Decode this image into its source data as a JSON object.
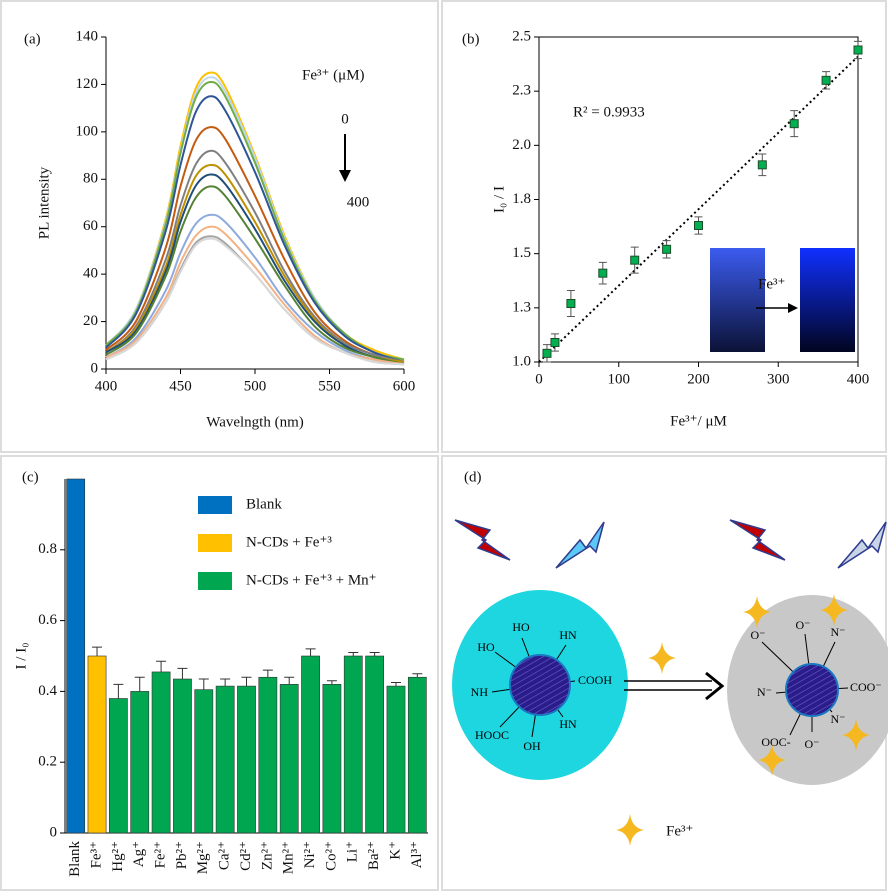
{
  "chart_data": [
    {
      "type": "line",
      "panel_label": "(a)",
      "x_label": "Wavelngth (nm)",
      "y_label": "PL intensity",
      "x": [
        400,
        420,
        440,
        450,
        460,
        470,
        480,
        500,
        520,
        540,
        560,
        580,
        600
      ],
      "series": [
        {
          "color": "#ffc000",
          "values": [
            10,
            25,
            63,
            94,
            118,
            125,
            119,
            90,
            56,
            30,
            15,
            8,
            4
          ]
        },
        {
          "color": "#bdd7ee",
          "values": [
            10,
            25,
            62,
            92,
            116,
            123,
            117,
            89,
            55,
            30,
            15,
            7,
            4
          ]
        },
        {
          "color": "#70ad47",
          "values": [
            10,
            24,
            61,
            91,
            114,
            121,
            115,
            87,
            54,
            29,
            15,
            7,
            4
          ]
        },
        {
          "color": "#2f5597",
          "values": [
            9,
            23,
            58,
            86,
            108,
            115,
            109,
            83,
            52,
            28,
            14,
            7,
            3
          ]
        },
        {
          "color": "#c55a11",
          "values": [
            8,
            20,
            51,
            77,
            96,
            102,
            97,
            73,
            46,
            24,
            12,
            6,
            3
          ]
        },
        {
          "color": "#7f7f7f",
          "values": [
            7,
            18,
            46,
            69,
            86,
            92,
            87,
            66,
            41,
            22,
            11,
            6,
            3
          ]
        },
        {
          "color": "#bf9000",
          "values": [
            7,
            17,
            43,
            65,
            81,
            86,
            82,
            62,
            39,
            21,
            10,
            5,
            3
          ]
        },
        {
          "color": "#1f4e79",
          "values": [
            7,
            16,
            41,
            62,
            77,
            82,
            78,
            59,
            37,
            20,
            10,
            5,
            2
          ]
        },
        {
          "color": "#548235",
          "values": [
            6,
            15,
            39,
            58,
            72,
            77,
            73,
            55,
            35,
            18,
            9,
            5,
            2
          ]
        },
        {
          "color": "#8faadc",
          "values": [
            5,
            13,
            33,
            49,
            61,
            65,
            62,
            47,
            29,
            16,
            8,
            4,
            2
          ]
        },
        {
          "color": "#f4b183",
          "values": [
            5,
            12,
            30,
            45,
            56,
            60,
            57,
            43,
            27,
            14,
            7,
            4,
            2
          ]
        },
        {
          "color": "#a5a5a5",
          "values": [
            4,
            11,
            28,
            42,
            53,
            56,
            53,
            40,
            25,
            13,
            7,
            3,
            2
          ]
        },
        {
          "color": "#d9d9d9",
          "values": [
            4,
            11,
            28,
            41,
            52,
            55,
            52,
            40,
            25,
            13,
            7,
            3,
            2
          ]
        }
      ],
      "xlim": [
        400,
        600
      ],
      "ylim": [
        0,
        140
      ],
      "xticks": [
        400,
        450,
        500,
        550,
        600
      ],
      "yticks": [
        0,
        20,
        40,
        60,
        80,
        100,
        120,
        140
      ],
      "annotations": {
        "legend_title": "Fe³⁺ (μM)",
        "start": "0",
        "end": "400"
      }
    },
    {
      "type": "scatter",
      "panel_label": "(b)",
      "x_label": "Fe³⁺/ μM",
      "y_label": "I₀ / I",
      "x": [
        10,
        20,
        40,
        80,
        120,
        160,
        200,
        280,
        320,
        360,
        400
      ],
      "series": [
        {
          "color": "#00b050",
          "values": [
            1.04,
            1.09,
            1.27,
            1.41,
            1.47,
            1.52,
            1.63,
            1.91,
            2.1,
            2.3,
            2.44
          ],
          "errors": [
            0.04,
            0.04,
            0.06,
            0.05,
            0.06,
            0.04,
            0.04,
            0.05,
            0.06,
            0.04,
            0.04
          ]
        }
      ],
      "trendline": {
        "x": [
          0,
          400
        ],
        "y": [
          1.0,
          2.41
        ]
      },
      "annotation": "R² = 0.9933",
      "inset_label": "Fe³⁺",
      "xlim": [
        0,
        400
      ],
      "ylim": [
        1.0,
        2.5
      ],
      "xticks": [
        0,
        100,
        200,
        300,
        400
      ],
      "yticks": [
        {
          "value": 1.0,
          "label": "1.0"
        },
        {
          "value": 1.25,
          "label": "1.3"
        },
        {
          "value": 1.5,
          "label": "1.5"
        },
        {
          "value": 1.75,
          "label": "1.8"
        },
        {
          "value": 2.0,
          "label": "2.0"
        },
        {
          "value": 2.25,
          "label": "2.3"
        },
        {
          "value": 2.5,
          "label": "2.5"
        }
      ]
    },
    {
      "type": "bar",
      "panel_label": "(c)",
      "y_label": "I / I₀",
      "categories": [
        "Blank",
        "Fe³⁺",
        "Hg²⁺",
        "Ag⁺",
        "Fe²⁺",
        "Pb²⁺",
        "Mg²⁺",
        "Ca²⁺",
        "Cd²⁺",
        "Zn²⁺",
        "Mn²⁺",
        "Ni²⁺",
        "Co²⁺",
        "Li⁺",
        "Ba²⁺",
        "K⁺",
        "Al³⁺"
      ],
      "series": [
        {
          "name": "Blank",
          "color": "#0070c0",
          "values": [
            1,
            null,
            null,
            null,
            null,
            null,
            null,
            null,
            null,
            null,
            null,
            null,
            null,
            null,
            null,
            null,
            null
          ],
          "errors": [
            null,
            null,
            null,
            null,
            null,
            null,
            null,
            null,
            null,
            null,
            null,
            null,
            null,
            null,
            null,
            null,
            null
          ]
        },
        {
          "name": "N-CDs + Fe⁺³",
          "color": "#ffc000",
          "values": [
            null,
            0.5,
            null,
            null,
            null,
            null,
            null,
            null,
            null,
            null,
            null,
            null,
            null,
            null,
            null,
            null,
            null
          ],
          "errors": [
            null,
            0.025,
            null,
            null,
            null,
            null,
            null,
            null,
            null,
            null,
            null,
            null,
            null,
            null,
            null,
            null,
            null
          ]
        },
        {
          "name": "N-CDs + Fe⁺³ + Mn⁺",
          "color": "#00a650",
          "values": [
            null,
            null,
            0.38,
            0.4,
            0.455,
            0.435,
            0.405,
            0.415,
            0.415,
            0.44,
            0.42,
            0.5,
            0.42,
            0.5,
            0.5,
            0.415,
            0.44
          ],
          "errors": [
            null,
            null,
            0.04,
            0.04,
            0.03,
            0.03,
            0.03,
            0.02,
            0.025,
            0.02,
            0.02,
            0.02,
            0.01,
            0.01,
            0.01,
            0.01,
            0.01
          ]
        }
      ],
      "ylim": [
        0,
        1
      ],
      "yticks": [
        0,
        0.2,
        0.4,
        0.6,
        0.8
      ],
      "legend": "upper right"
    }
  ],
  "diagram": {
    "panel_label": "(d)",
    "left_groups": [
      "HO",
      "HO",
      "HN",
      "COOH",
      "NH",
      "HOOC",
      "OH",
      "HN"
    ],
    "right_groups": [
      "O⁻",
      "O⁻",
      "N⁻",
      "COO⁻",
      "N⁻",
      "N⁻",
      "OOC-",
      "O⁻"
    ],
    "legend": "Fe³⁺"
  }
}
